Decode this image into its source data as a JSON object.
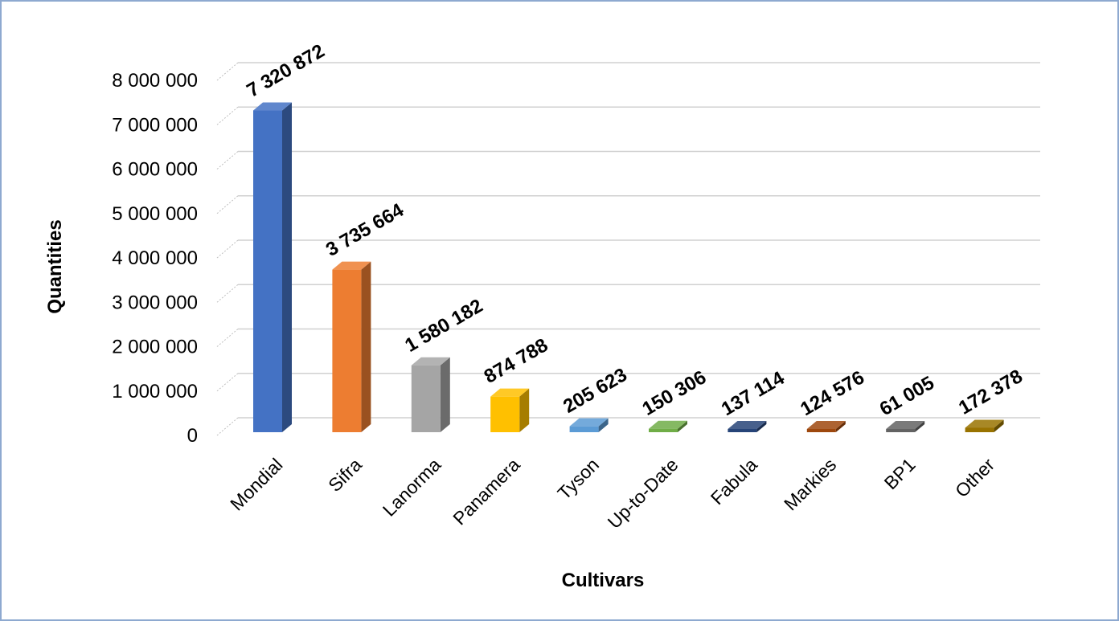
{
  "chart_data": {
    "type": "bar",
    "title": "",
    "xlabel": "Cultivars",
    "ylabel": "Quantities",
    "ylim": [
      0,
      8000000
    ],
    "yticks": [
      0,
      1000000,
      2000000,
      3000000,
      4000000,
      5000000,
      6000000,
      7000000,
      8000000
    ],
    "ytick_labels": [
      "0",
      "1 000 000",
      "2 000 000",
      "3 000 000",
      "4 000 000",
      "5 000 000",
      "6 000 000",
      "7 000 000",
      "8 000 000"
    ],
    "categories": [
      "Mondial",
      "Sifra",
      "Lanorma",
      "Panamera",
      "Tyson",
      "Up-to-Date",
      "Fabula",
      "Markies",
      "BP1",
      "Other"
    ],
    "values": [
      7320872,
      3735664,
      1580182,
      874788,
      205623,
      150306,
      137114,
      124576,
      61005,
      172378
    ],
    "value_labels": [
      "7 320 872",
      "3 735 664",
      "1 580 182",
      "874 788",
      "205 623",
      "150 306",
      "137 114",
      "124 576",
      "61 005",
      "172 378"
    ],
    "colors": [
      "#4472c4",
      "#ed7d31",
      "#a5a5a5",
      "#ffc000",
      "#5b9bd5",
      "#70ad47",
      "#264478",
      "#9e480e",
      "#636363",
      "#997300"
    ],
    "grid": true,
    "style": "3d-columns",
    "legend": "none"
  }
}
